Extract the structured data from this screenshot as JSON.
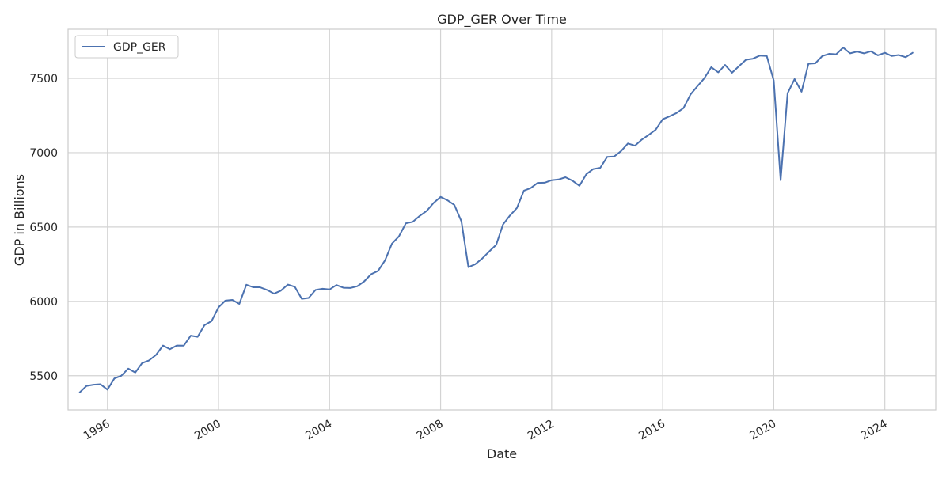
{
  "chart_data": {
    "type": "line",
    "title": "GDP_GER Over Time",
    "xlabel": "Date",
    "ylabel": "GDP in Billions",
    "x_ticks": [
      "1996",
      "2000",
      "2004",
      "2008",
      "2012",
      "2016",
      "2020",
      "2024"
    ],
    "y_ticks": [
      5500,
      6000,
      6500,
      7000,
      7500
    ],
    "xlim": [
      "1994-08-01",
      "2025-11-01"
    ],
    "ylim": [
      5270,
      7830
    ],
    "grid": true,
    "legend_position": "top-left",
    "series": [
      {
        "name": "GDP_GER",
        "color": "#4c72b0",
        "x": [
          "1995-01-01",
          "1995-04-01",
          "1995-07-01",
          "1995-10-01",
          "1996-01-01",
          "1996-04-01",
          "1996-07-01",
          "1996-10-01",
          "1997-01-01",
          "1997-04-01",
          "1997-07-01",
          "1997-10-01",
          "1998-01-01",
          "1998-04-01",
          "1998-07-01",
          "1998-10-01",
          "1999-01-01",
          "1999-04-01",
          "1999-07-01",
          "1999-10-01",
          "2000-01-01",
          "2000-04-01",
          "2000-07-01",
          "2000-10-01",
          "2001-01-01",
          "2001-04-01",
          "2001-07-01",
          "2001-10-01",
          "2002-01-01",
          "2002-04-01",
          "2002-07-01",
          "2002-10-01",
          "2003-01-01",
          "2003-04-01",
          "2003-07-01",
          "2003-10-01",
          "2004-01-01",
          "2004-04-01",
          "2004-07-01",
          "2004-10-01",
          "2005-01-01",
          "2005-04-01",
          "2005-07-01",
          "2005-10-01",
          "2006-01-01",
          "2006-04-01",
          "2006-07-01",
          "2006-10-01",
          "2007-01-01",
          "2007-04-01",
          "2007-07-01",
          "2007-10-01",
          "2008-01-01",
          "2008-04-01",
          "2008-07-01",
          "2008-10-01",
          "2009-01-01",
          "2009-04-01",
          "2009-07-01",
          "2009-10-01",
          "2010-01-01",
          "2010-04-01",
          "2010-07-01",
          "2010-10-01",
          "2011-01-01",
          "2011-04-01",
          "2011-07-01",
          "2011-10-01",
          "2012-01-01",
          "2012-04-01",
          "2012-07-01",
          "2012-10-01",
          "2013-01-01",
          "2013-04-01",
          "2013-07-01",
          "2013-10-01",
          "2014-01-01",
          "2014-04-01",
          "2014-07-01",
          "2014-10-01",
          "2015-01-01",
          "2015-04-01",
          "2015-07-01",
          "2015-10-01",
          "2016-01-01",
          "2016-04-01",
          "2016-07-01",
          "2016-10-01",
          "2017-01-01",
          "2017-04-01",
          "2017-07-01",
          "2017-10-01",
          "2018-01-01",
          "2018-04-01",
          "2018-07-01",
          "2018-10-01",
          "2019-01-01",
          "2019-04-01",
          "2019-07-01",
          "2019-10-01",
          "2020-01-01",
          "2020-04-01",
          "2020-07-01",
          "2020-10-01",
          "2021-01-01",
          "2021-04-01",
          "2021-07-01",
          "2021-10-01",
          "2022-01-01",
          "2022-04-01",
          "2022-07-01",
          "2022-10-01",
          "2023-01-01",
          "2023-04-01",
          "2023-07-01",
          "2023-10-01",
          "2024-01-01",
          "2024-04-01",
          "2024-07-01",
          "2024-10-01",
          "2025-01-01"
        ],
        "values": [
          5388,
          5432,
          5440,
          5443,
          5407,
          5482,
          5500,
          5548,
          5522,
          5585,
          5603,
          5640,
          5703,
          5678,
          5703,
          5702,
          5770,
          5762,
          5840,
          5867,
          5960,
          6005,
          6010,
          5983,
          6112,
          6095,
          6095,
          6077,
          6052,
          6072,
          6113,
          6098,
          6017,
          6023,
          6077,
          6085,
          6080,
          6110,
          6092,
          6090,
          6102,
          6135,
          6183,
          6205,
          6277,
          6388,
          6437,
          6525,
          6535,
          6575,
          6608,
          6662,
          6703,
          6680,
          6648,
          6538,
          6230,
          6250,
          6288,
          6335,
          6380,
          6517,
          6577,
          6628,
          6745,
          6762,
          6797,
          6798,
          6815,
          6820,
          6835,
          6812,
          6777,
          6855,
          6890,
          6898,
          6972,
          6974,
          7010,
          7062,
          7047,
          7088,
          7120,
          7155,
          7225,
          7245,
          7267,
          7300,
          7392,
          7447,
          7500,
          7575,
          7540,
          7590,
          7538,
          7582,
          7625,
          7632,
          7653,
          7650,
          7485,
          6815,
          7400,
          7495,
          7410,
          7598,
          7601,
          7650,
          7665,
          7662,
          7707,
          7668,
          7680,
          7668,
          7682,
          7655,
          7672,
          7650,
          7657,
          7642,
          7672
        ]
      }
    ]
  }
}
